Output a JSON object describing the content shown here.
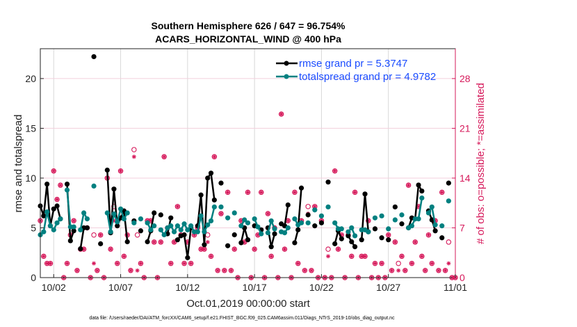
{
  "chart_data": {
    "type": "line",
    "title": [
      "Southern Hemisphere 626 / 647 = 96.754%",
      "ACARS_HORIZONTAL_WIND @ 400 hPa"
    ],
    "xlabel": "Oct.01,2019 00:00:00 start",
    "ylabel": "rmse and totalspread",
    "ylabel_right": "# of obs: o=possible; *=assimilated",
    "footnote": "data file: /Users/raeder/DAI/ATM_forcXX/CAM6_setup/f.e21.FHIST_BGC.f09_025.CAM6assim.011/Diags_NTrS_2019-10/obs_diag_output.nc",
    "x_start": "2019-10-01T00:00",
    "x_step_hours": 6,
    "xlim": [
      "2019-10-01",
      "2019-11-01"
    ],
    "xticks": [
      {
        "date": "2019-10-02",
        "label": "10/02"
      },
      {
        "date": "2019-10-07",
        "label": "10/07"
      },
      {
        "date": "2019-10-12",
        "label": "10/12"
      },
      {
        "date": "2019-10-17",
        "label": "10/17"
      },
      {
        "date": "2019-10-22",
        "label": "10/22"
      },
      {
        "date": "2019-10-27",
        "label": "10/27"
      },
      {
        "date": "2019-11-01",
        "label": "11/01"
      }
    ],
    "ylim": [
      0,
      23
    ],
    "yticks": [
      0,
      5,
      10,
      15,
      20
    ],
    "ylim_right": [
      0,
      32.2
    ],
    "yticks_right": [
      0,
      7,
      14,
      21,
      28
    ],
    "grid": true,
    "legend_placement": "top-right",
    "colors": {
      "rmse": "#000000",
      "totalspread": "#008080",
      "obs": "#d6185a",
      "legend_text": "#1a4cff"
    },
    "series": [
      {
        "name": "rmse grand pr = 5.3747",
        "axis": "left",
        "marker": "filled-circle",
        "values": [
          7.2,
          6.2,
          9.4,
          5.2,
          6.9,
          7.2,
          5.9,
          null,
          9.4,
          3.7,
          4.7,
          null,
          2.9,
          5.0,
          5.0,
          null,
          22.2,
          null,
          3.4,
          null,
          10.8,
          4.5,
          8.9,
          5.2,
          6.0,
          6.7,
          3.6,
          null,
          5.7,
          null,
          4.7,
          null,
          3.6,
          4.7,
          6.5,
          null,
          6.3,
          null,
          4.4,
          6.0,
          null,
          3.8,
          4.2,
          4.3,
          2.0,
          5.0,
          null,
          5.2,
          8.3,
          3.3,
          10.0,
          10.5,
          7.8,
          null,
          9.5,
          null,
          3.2,
          null,
          4.3,
          null,
          3.5,
          5.0,
          3.8,
          null,
          5.2,
          null,
          4.8,
          null,
          5.0,
          3.1,
          4.4,
          null,
          5.4,
          5.2,
          7.3,
          null,
          3.5,
          4.8,
          9.0,
          null,
          6.3,
          null,
          5.2,
          null,
          5.5,
          null,
          9.6,
          null,
          3.4,
          4.7,
          3.9,
          null,
          4.2,
          3.6,
          3.1,
          null,
          3.8,
          8.4,
          4.6,
          null,
          4.9,
          null,
          4.0,
          null,
          3.8,
          null,
          7.1,
          null,
          5.4,
          null,
          5.0,
          6.0,
          5.9,
          9.3,
          8.7,
          null,
          6.7,
          5.8,
          4.7,
          null,
          4.0,
          null,
          9.5,
          null,
          null
        ]
      },
      {
        "name": "totalspread grand pr = 4.9782",
        "axis": "left",
        "marker": "filled-circle",
        "values": [
          4.3,
          4.6,
          6.6,
          5.2,
          4.8,
          5.5,
          5.9,
          null,
          8.8,
          5.1,
          5.1,
          null,
          4.8,
          6.5,
          5.9,
          null,
          9.2,
          null,
          null,
          null,
          6.5,
          4.6,
          6.4,
          5.6,
          6.9,
          5.9,
          6.5,
          null,
          5.5,
          null,
          5.9,
          null,
          5.5,
          4.8,
          5.2,
          null,
          4.8,
          4.3,
          5.0,
          5.2,
          4.6,
          5.2,
          4.8,
          5.4,
          4.8,
          5.2,
          4.6,
          4.6,
          6.2,
          4.6,
          5.3,
          5.7,
          7.1,
          null,
          7.1,
          null,
          6.0,
          null,
          6.5,
          null,
          5.2,
          5.8,
          5.5,
          null,
          5.9,
          5.1,
          4.4,
          null,
          4.5,
          5.7,
          4.9,
          null,
          4.6,
          4.5,
          5.0,
          null,
          5.9,
          5.3,
          5.5,
          null,
          5.5,
          null,
          6.8,
          null,
          6.2,
          null,
          7.1,
          null,
          5.5,
          4.9,
          4.9,
          null,
          4.6,
          5.0,
          4.2,
          null,
          4.8,
          4.8,
          4.6,
          null,
          6.0,
          null,
          6.2,
          null,
          4.9,
          null,
          5.8,
          null,
          6.3,
          null,
          5.0,
          5.2,
          5.9,
          5.9,
          8.0,
          null,
          6.5,
          7.1,
          5.3,
          null,
          5.2,
          null,
          7.7,
          null,
          null
        ]
      },
      {
        "name": "possible",
        "axis": "right",
        "marker": "open-circle",
        "values": [
          8,
          3,
          2,
          2,
          15,
          11,
          13,
          0,
          2,
          6,
          8,
          1,
          4,
          4,
          7,
          0,
          6,
          1,
          6,
          0,
          14,
          4,
          10,
          2,
          15,
          3,
          6,
          1,
          18,
          6,
          2,
          0,
          8,
          8,
          5,
          0,
          5,
          17,
          7,
          2,
          5,
          10,
          6,
          2,
          5,
          2,
          6,
          7,
          4,
          4,
          6,
          3,
          17,
          1,
          9,
          1,
          12,
          1,
          4,
          0,
          8,
          5,
          12,
          0,
          4,
          6,
          12,
          0,
          9,
          3,
          7,
          0,
          23,
          4,
          8,
          0,
          12,
          2,
          8,
          1,
          10,
          1,
          10,
          0,
          8,
          0,
          4,
          0,
          15,
          4,
          6,
          0,
          6,
          3,
          12,
          0,
          3,
          3,
          8,
          0,
          2,
          0,
          2,
          0,
          6,
          1,
          5,
          2,
          3,
          1,
          13,
          2,
          5,
          10,
          3,
          1,
          6,
          2,
          8,
          1,
          12,
          1,
          5,
          0,
          0
        ]
      },
      {
        "name": "assimilated",
        "axis": "right",
        "marker": "asterisk",
        "values": [
          8,
          3,
          2,
          2,
          15,
          11,
          13,
          0,
          2,
          6,
          8,
          1,
          4,
          4,
          7,
          0,
          2,
          1,
          6,
          0,
          14,
          4,
          8,
          2,
          15,
          3,
          6,
          1,
          17,
          1,
          2,
          0,
          8,
          8,
          5,
          0,
          5,
          17,
          7,
          2,
          5,
          10,
          6,
          2,
          5,
          2,
          6,
          7,
          4,
          4,
          5,
          3,
          17,
          1,
          9,
          1,
          12,
          1,
          4,
          0,
          8,
          5,
          12,
          0,
          4,
          6,
          12,
          0,
          9,
          3,
          7,
          0,
          23,
          4,
          8,
          0,
          12,
          2,
          8,
          1,
          9,
          1,
          10,
          0,
          8,
          0,
          3,
          0,
          15,
          4,
          6,
          0,
          6,
          3,
          12,
          0,
          3,
          3,
          8,
          0,
          2,
          0,
          2,
          0,
          6,
          1,
          5,
          1,
          3,
          1,
          13,
          2,
          5,
          10,
          3,
          1,
          6,
          2,
          8,
          1,
          12,
          1,
          2,
          0,
          0
        ]
      }
    ]
  }
}
